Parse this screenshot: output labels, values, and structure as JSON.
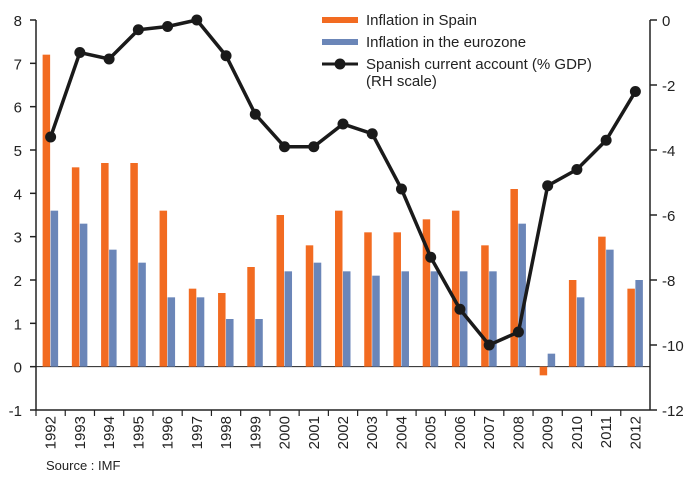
{
  "chart_data": {
    "type": "bar_line",
    "categories": [
      "1992",
      "1993",
      "1994",
      "1995",
      "1996",
      "1997",
      "1998",
      "1999",
      "2000",
      "2001",
      "2002",
      "2003",
      "2004",
      "2005",
      "2006",
      "2007",
      "2008",
      "2009",
      "2010",
      "2011",
      "2012"
    ],
    "series": [
      {
        "name": "Inflation in Spain",
        "color": "#f26b21",
        "type": "bar",
        "values": [
          7.2,
          4.6,
          4.7,
          4.7,
          3.6,
          1.8,
          1.7,
          2.3,
          3.5,
          2.8,
          3.6,
          3.1,
          3.1,
          3.4,
          3.6,
          2.8,
          4.1,
          -0.2,
          2.0,
          3.0,
          1.8
        ]
      },
      {
        "name": "Inflation in the eurozone",
        "color": "#6b86b8",
        "type": "bar",
        "values": [
          3.6,
          3.3,
          2.7,
          2.4,
          1.6,
          1.6,
          1.1,
          1.1,
          2.2,
          2.4,
          2.2,
          2.1,
          2.2,
          2.2,
          2.2,
          2.2,
          3.3,
          0.3,
          1.6,
          2.7,
          2.0
        ]
      },
      {
        "name": "Spanish current account (% GDP)",
        "color": "#1a1a1a",
        "type": "line",
        "axis": "y2",
        "values": [
          -3.6,
          -1.0,
          -1.2,
          -0.3,
          -0.2,
          0,
          -1.1,
          -2.9,
          -3.9,
          -3.9,
          -3.2,
          -3.5,
          -5.2,
          -7.3,
          -8.9,
          -10.0,
          -9.6,
          -5.1,
          -4.6,
          -3.7,
          -2.2
        ]
      }
    ],
    "y2_note": "(RH scale)",
    "ylim": [
      -1,
      8
    ],
    "yticks": [
      -1,
      0,
      1,
      2,
      3,
      4,
      5,
      6,
      7,
      8
    ],
    "y2lim": [
      -12,
      0
    ],
    "y2ticks": [
      0,
      -2,
      -4,
      -6,
      -8,
      -10,
      -12
    ],
    "source": "Source : IMF"
  }
}
